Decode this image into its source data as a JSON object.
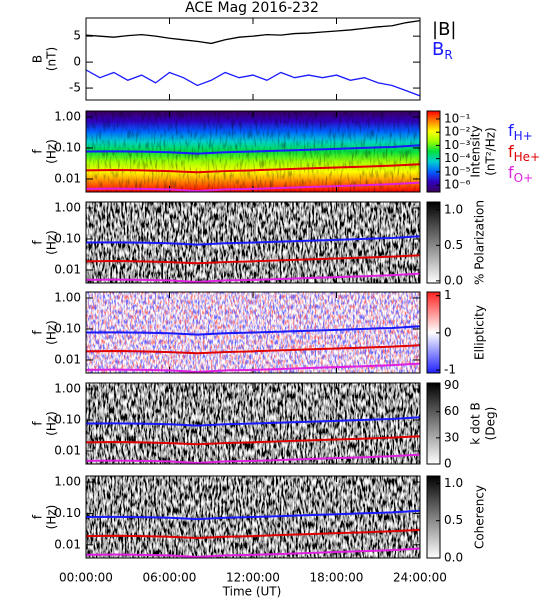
{
  "chart_data": [
    {
      "type": "line",
      "title": "ACE Mag 2016-232",
      "ylabel": [
        "B",
        "(nT)"
      ],
      "x": [
        0,
        1,
        2,
        3,
        4,
        5,
        6,
        7,
        8,
        9,
        10,
        11,
        12,
        13,
        14,
        15,
        16,
        17,
        18,
        19,
        20,
        21,
        22,
        23,
        24
      ],
      "xlim": [
        0,
        24
      ],
      "xticks": [
        0,
        6,
        12,
        18,
        24
      ],
      "ylim": [
        -7.3,
        8.5
      ],
      "yticks": [
        5,
        0,
        -5
      ],
      "series": [
        {
          "name": "|B|",
          "color": "#000000",
          "values": [
            5.2,
            5.0,
            4.8,
            5.1,
            5.3,
            5.0,
            4.6,
            4.3,
            4.0,
            3.6,
            4.3,
            4.8,
            5.0,
            5.3,
            5.2,
            5.5,
            5.6,
            5.8,
            6.0,
            6.2,
            6.5,
            6.8,
            7.0,
            7.6,
            8.0
          ]
        },
        {
          "name": "B",
          "subscript": "R",
          "color": "#1a1aff",
          "values": [
            -1.5,
            -3.0,
            -2.0,
            -3.5,
            -2.5,
            -4.0,
            -2.0,
            -3.0,
            -4.5,
            -3.5,
            -2.0,
            -3.0,
            -2.5,
            -3.5,
            -2.0,
            -3.0,
            -2.5,
            -3.0,
            -2.5,
            -3.5,
            -3.0,
            -4.0,
            -4.5,
            -5.5,
            -6.5
          ]
        }
      ]
    },
    {
      "type": "spectrogram",
      "ylabel": [
        "f",
        "(Hz)"
      ],
      "ylog": true,
      "x": [
        0,
        2,
        4,
        6,
        8,
        10,
        12,
        14,
        16,
        18,
        20,
        22,
        24
      ],
      "xlim": [
        0,
        24
      ],
      "xticks": [
        0,
        6,
        12,
        18,
        24
      ],
      "ylim": [
        0.0038,
        1.56
      ],
      "yticks": [
        {
          "value": 1,
          "label": "1.00"
        },
        {
          "value": 0.1,
          "label": "0.10"
        },
        {
          "value": 0.01,
          "label": "0.01"
        }
      ],
      "series": [
        {
          "name": "f",
          "subscript": "H+",
          "color": "#1a1aff",
          "values": [
            0.077,
            0.078,
            0.076,
            0.073,
            0.066,
            0.073,
            0.077,
            0.082,
            0.088,
            0.094,
            0.101,
            0.108,
            0.122
          ]
        },
        {
          "name": "f",
          "subscript": "He+",
          "color": "#e00000",
          "values": [
            0.019,
            0.0195,
            0.019,
            0.018,
            0.0165,
            0.018,
            0.019,
            0.0205,
            0.022,
            0.0235,
            0.025,
            0.027,
            0.03
          ]
        },
        {
          "name": "f",
          "subscript": "O+",
          "color": "#e020e0",
          "values": [
            0.0048,
            0.0049,
            0.0048,
            0.0046,
            0.0041,
            0.0046,
            0.0048,
            0.0051,
            0.0055,
            0.0059,
            0.0063,
            0.0068,
            0.0076
          ]
        }
      ],
      "colorbar": {
        "label": [
          "Intensity",
          "(nT²/Hz)"
        ],
        "log": true,
        "lim": [
          3e-07,
          0.4
        ],
        "ticks": [
          {
            "value": 0.1,
            "label": "10⁻¹"
          },
          {
            "value": 0.01,
            "label": "10⁻²"
          },
          {
            "value": 0.001,
            "label": "10⁻³"
          },
          {
            "value": 0.0001,
            "label": "10⁻⁴"
          },
          {
            "value": 1e-05,
            "label": "10⁻⁵"
          },
          {
            "value": 1e-06,
            "label": "10⁻⁶"
          }
        ],
        "colors": [
          "#3b005a",
          "#3000c0",
          "#0060ff",
          "#00d0d0",
          "#00e040",
          "#a0ff00",
          "#ffff00",
          "#ff8000",
          "#ff0000"
        ]
      }
    },
    {
      "type": "spectrogram",
      "ylabel": [
        "f",
        "(Hz)"
      ],
      "ylog": true,
      "x": [
        0,
        2,
        4,
        6,
        8,
        10,
        12,
        14,
        16,
        18,
        20,
        22,
        24
      ],
      "xlim": [
        0,
        24
      ],
      "xticks": [
        0,
        6,
        12,
        18,
        24
      ],
      "ylim": [
        0.0038,
        1.56
      ],
      "yticks": [
        {
          "value": 1,
          "label": "1.00"
        },
        {
          "value": 0.1,
          "label": "0.10"
        },
        {
          "value": 0.01,
          "label": "0.01"
        }
      ],
      "series": [
        {
          "color": "#1a1aff",
          "values": [
            0.077,
            0.078,
            0.076,
            0.073,
            0.066,
            0.073,
            0.077,
            0.082,
            0.088,
            0.094,
            0.101,
            0.108,
            0.122
          ]
        },
        {
          "color": "#e00000",
          "values": [
            0.019,
            0.0195,
            0.019,
            0.018,
            0.0165,
            0.018,
            0.019,
            0.0205,
            0.022,
            0.0235,
            0.025,
            0.027,
            0.03
          ]
        },
        {
          "color": "#e020e0",
          "values": [
            0.0048,
            0.0049,
            0.0048,
            0.0046,
            0.0041,
            0.0046,
            0.0048,
            0.0051,
            0.0055,
            0.0059,
            0.0063,
            0.0068,
            0.0076
          ]
        }
      ],
      "colorbar": {
        "label": [
          "% Polarization"
        ],
        "lim": [
          -0.03,
          1.11
        ],
        "ticks": [
          {
            "value": 1,
            "label": "1.0"
          },
          0.5,
          {
            "value": 0,
            "label": "0.0"
          }
        ],
        "colors": [
          "#ffffff",
          "#000000"
        ]
      }
    },
    {
      "type": "spectrogram",
      "ylabel": [
        "f",
        "(Hz)"
      ],
      "ylog": true,
      "x": [
        0,
        2,
        4,
        6,
        8,
        10,
        12,
        14,
        16,
        18,
        20,
        22,
        24
      ],
      "xlim": [
        0,
        24
      ],
      "xticks": [
        0,
        6,
        12,
        18,
        24
      ],
      "ylim": [
        0.0038,
        1.56
      ],
      "yticks": [
        {
          "value": 1,
          "label": "1.00"
        },
        {
          "value": 0.1,
          "label": "0.10"
        },
        {
          "value": 0.01,
          "label": "0.01"
        }
      ],
      "series": [
        {
          "color": "#1a1aff",
          "values": [
            0.077,
            0.078,
            0.076,
            0.073,
            0.066,
            0.073,
            0.077,
            0.082,
            0.088,
            0.094,
            0.101,
            0.108,
            0.122
          ]
        },
        {
          "color": "#e00000",
          "values": [
            0.019,
            0.0195,
            0.019,
            0.018,
            0.0165,
            0.018,
            0.019,
            0.0205,
            0.022,
            0.0235,
            0.025,
            0.027,
            0.03
          ]
        },
        {
          "color": "#e020e0",
          "values": [
            0.0048,
            0.0049,
            0.0048,
            0.0046,
            0.0041,
            0.0046,
            0.0048,
            0.0051,
            0.0055,
            0.0059,
            0.0063,
            0.0068,
            0.0076
          ]
        }
      ],
      "colorbar": {
        "label": [
          "Ellipticity"
        ],
        "lim": [
          -1.08,
          1.1
        ],
        "ticks": [
          1,
          0,
          -1
        ],
        "colors": [
          "#2020ff",
          "#ffffff",
          "#ff2020"
        ]
      }
    },
    {
      "type": "spectrogram",
      "ylabel": [
        "f",
        "(Hz)"
      ],
      "ylog": true,
      "x": [
        0,
        2,
        4,
        6,
        8,
        10,
        12,
        14,
        16,
        18,
        20,
        22,
        24
      ],
      "xlim": [
        0,
        24
      ],
      "xticks": [
        0,
        6,
        12,
        18,
        24
      ],
      "ylim": [
        0.0038,
        1.56
      ],
      "yticks": [
        {
          "value": 1,
          "label": "1.00"
        },
        {
          "value": 0.1,
          "label": "0.10"
        },
        {
          "value": 0.01,
          "label": "0.01"
        }
      ],
      "series": [
        {
          "color": "#1a1aff",
          "values": [
            0.077,
            0.078,
            0.076,
            0.073,
            0.066,
            0.073,
            0.077,
            0.082,
            0.088,
            0.094,
            0.101,
            0.108,
            0.122
          ]
        },
        {
          "color": "#e00000",
          "values": [
            0.019,
            0.0195,
            0.019,
            0.018,
            0.0165,
            0.018,
            0.019,
            0.0205,
            0.022,
            0.0235,
            0.025,
            0.027,
            0.03
          ]
        },
        {
          "color": "#e020e0",
          "values": [
            0.0048,
            0.0049,
            0.0048,
            0.0046,
            0.0041,
            0.0046,
            0.0048,
            0.0051,
            0.0055,
            0.0059,
            0.0063,
            0.0068,
            0.0076
          ]
        }
      ],
      "colorbar": {
        "label": [
          "k dot B",
          "(Deg)"
        ],
        "lim": [
          0,
          93
        ],
        "ticks": [
          90,
          60,
          30,
          0
        ],
        "colors": [
          "#ffffff",
          "#000000"
        ]
      }
    },
    {
      "type": "spectrogram",
      "ylabel": [
        "f",
        "(Hz)"
      ],
      "ylog": true,
      "x": [
        0,
        2,
        4,
        6,
        8,
        10,
        12,
        14,
        16,
        18,
        20,
        22,
        24
      ],
      "xlim": [
        0,
        24
      ],
      "xticks": [
        {
          "value": 0,
          "label": "00:00:00"
        },
        {
          "value": 6,
          "label": "06:00:00"
        },
        {
          "value": 12,
          "label": "12:00:00"
        },
        {
          "value": 18,
          "label": "18:00:00"
        },
        {
          "value": 24,
          "label": "24:00:00"
        }
      ],
      "xlabel": "Time (UT)",
      "ylim": [
        0.0038,
        1.56
      ],
      "yticks": [
        {
          "value": 1,
          "label": "1.00"
        },
        {
          "value": 0.1,
          "label": "0.10"
        },
        {
          "value": 0.01,
          "label": "0.01"
        }
      ],
      "series": [
        {
          "color": "#1a1aff",
          "values": [
            0.077,
            0.078,
            0.076,
            0.073,
            0.066,
            0.073,
            0.077,
            0.082,
            0.088,
            0.094,
            0.101,
            0.108,
            0.122
          ]
        },
        {
          "color": "#e00000",
          "values": [
            0.019,
            0.0195,
            0.019,
            0.018,
            0.0165,
            0.018,
            0.019,
            0.0205,
            0.022,
            0.0235,
            0.025,
            0.027,
            0.03
          ]
        },
        {
          "color": "#e020e0",
          "values": [
            0.0048,
            0.0049,
            0.0048,
            0.0046,
            0.0041,
            0.0046,
            0.0048,
            0.0051,
            0.0055,
            0.0059,
            0.0063,
            0.0068,
            0.0076
          ]
        }
      ],
      "colorbar": {
        "label": [
          "Coherency"
        ],
        "lim": [
          0,
          1.1
        ],
        "ticks": [
          {
            "value": 1,
            "label": "1.0"
          },
          0.5,
          {
            "value": 0,
            "label": "0.0"
          }
        ],
        "colors": [
          "#ffffff",
          "#000000"
        ]
      }
    }
  ]
}
